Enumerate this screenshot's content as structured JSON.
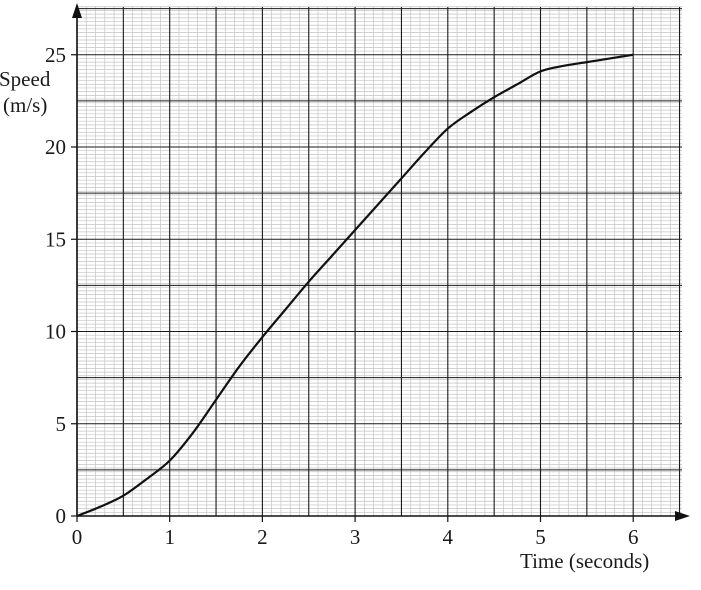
{
  "chart_data": {
    "type": "line",
    "title": "",
    "xlabel": "Time (seconds)",
    "ylabel_lines": [
      "Speed",
      "(m/s)"
    ],
    "xlim": [
      0,
      6.5
    ],
    "ylim": [
      0,
      27
    ],
    "x_ticks": [
      0,
      1,
      2,
      3,
      4,
      5,
      6
    ],
    "y_ticks": [
      0,
      5,
      10,
      15,
      20,
      25
    ],
    "x_tick_labels": [
      "0",
      "1",
      "2",
      "3",
      "4",
      "5",
      "6"
    ],
    "y_tick_labels": [
      "0",
      "5",
      "10",
      "15",
      "20",
      "25"
    ],
    "grid": true,
    "grid_minor_per_major_x": 10,
    "grid_minor_per_major_y": 5,
    "series": [
      {
        "x": [
          0,
          0.25,
          0.5,
          0.75,
          1.0,
          1.25,
          1.5,
          1.75,
          2.0,
          2.25,
          2.5,
          2.75,
          3.0,
          3.25,
          3.5,
          3.75,
          4.0,
          4.25,
          4.5,
          4.75,
          5.0,
          5.25,
          5.5,
          5.75,
          6.0
        ],
        "y": [
          0,
          0.5,
          1.1,
          2.0,
          3.0,
          4.5,
          6.3,
          8.1,
          9.7,
          11.2,
          12.7,
          14.1,
          15.5,
          16.9,
          18.3,
          19.7,
          21.0,
          21.9,
          22.7,
          23.4,
          24.1,
          24.4,
          24.6,
          24.8,
          25.0
        ]
      }
    ],
    "colors": {
      "minor_grid": "#c4c4c4",
      "major_grid": "#1a1a1a",
      "line": "#111111",
      "axis": "#111111"
    }
  }
}
